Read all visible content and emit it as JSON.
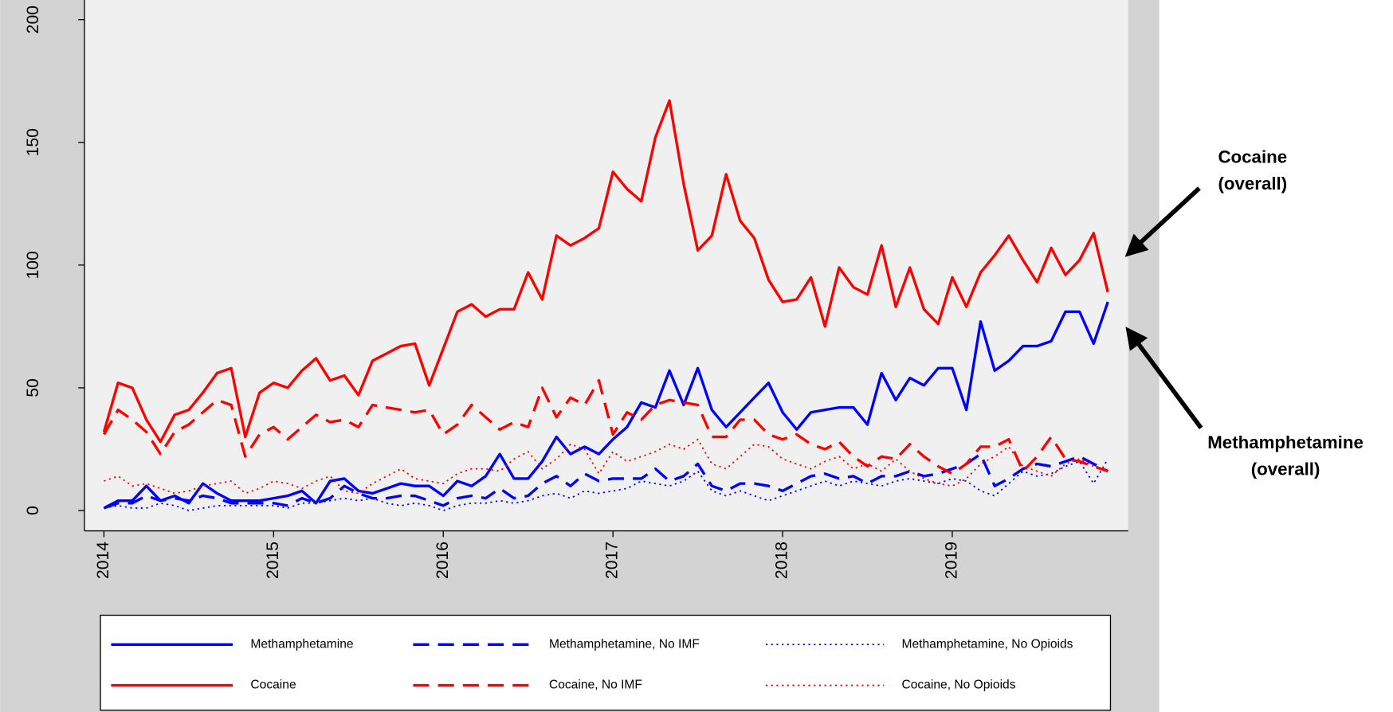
{
  "chart_data": {
    "type": "line",
    "x": [
      2014,
      2014.083,
      2014.167,
      2014.25,
      2014.333,
      2014.417,
      2014.5,
      2014.583,
      2014.667,
      2014.75,
      2014.833,
      2014.917,
      2015,
      2015.083,
      2015.167,
      2015.25,
      2015.333,
      2015.417,
      2015.5,
      2015.583,
      2015.667,
      2015.75,
      2015.833,
      2015.917,
      2016,
      2016.083,
      2016.167,
      2016.25,
      2016.333,
      2016.417,
      2016.5,
      2016.583,
      2016.667,
      2016.75,
      2016.833,
      2016.917,
      2017,
      2017.083,
      2017.167,
      2017.25,
      2017.333,
      2017.417,
      2017.5,
      2017.583,
      2017.667,
      2017.75,
      2017.833,
      2017.917,
      2018,
      2018.083,
      2018.167,
      2018.25,
      2018.333,
      2018.417,
      2018.5,
      2018.583,
      2018.667,
      2018.75,
      2018.833,
      2018.917,
      2019,
      2019.083,
      2019.167,
      2019.25,
      2019.333,
      2019.417,
      2019.5,
      2019.583,
      2019.667,
      2019.75,
      2019.833,
      2019.917
    ],
    "series": [
      {
        "name": "Methamphetamine",
        "color": "#0000ff",
        "dash": "solid",
        "values": [
          1,
          4,
          4,
          10,
          4,
          6,
          3,
          11,
          7,
          4,
          4,
          4,
          5,
          6,
          8,
          3,
          12,
          13,
          8,
          7,
          9,
          11,
          10,
          10,
          6,
          12,
          10,
          14,
          23,
          13,
          13,
          20,
          30,
          23,
          26,
          23,
          29,
          34,
          44,
          42,
          57,
          43,
          58,
          41,
          34,
          40,
          46,
          52,
          40,
          33,
          40,
          41,
          42,
          42,
          35,
          56,
          45,
          54,
          51,
          58,
          58,
          41,
          77,
          57,
          61,
          67,
          67,
          69,
          81,
          81,
          68,
          85
        ]
      },
      {
        "name": "Methamphetamine, No IMF",
        "color": "#0000ff",
        "dash": "dashed",
        "values": [
          1,
          3,
          3,
          6,
          4,
          5,
          4,
          6,
          5,
          3,
          3,
          3,
          3,
          2,
          5,
          3,
          5,
          10,
          7,
          5,
          5,
          6,
          6,
          4,
          2,
          5,
          6,
          5,
          9,
          5,
          6,
          11,
          14,
          10,
          15,
          12,
          13,
          13,
          13,
          17,
          12,
          14,
          19,
          10,
          8,
          11,
          11,
          10,
          8,
          11,
          14,
          15,
          13,
          14,
          11,
          14,
          14,
          16,
          14,
          15,
          17,
          19,
          23,
          10,
          13,
          17,
          19,
          18,
          20,
          22,
          19,
          16
        ]
      },
      {
        "name": "Methamphetamine, No Opioids",
        "color": "#0000ff",
        "dash": "dotted",
        "values": [
          1,
          2,
          1,
          1,
          3,
          2,
          0,
          1,
          2,
          2,
          2,
          2,
          2,
          1,
          3,
          3,
          4,
          5,
          4,
          5,
          3,
          2,
          3,
          2,
          0,
          2,
          3,
          3,
          4,
          3,
          4,
          6,
          7,
          5,
          8,
          7,
          8,
          9,
          12,
          11,
          10,
          12,
          16,
          8,
          6,
          8,
          6,
          4,
          6,
          8,
          10,
          12,
          10,
          12,
          11,
          10,
          12,
          13,
          12,
          11,
          13,
          12,
          8,
          6,
          11,
          16,
          14,
          15,
          18,
          20,
          11,
          21
        ]
      },
      {
        "name": "Cocaine",
        "color": "#ff0000",
        "dash": "solid",
        "values": [
          32,
          52,
          50,
          37,
          28,
          39,
          41,
          48,
          56,
          58,
          30,
          48,
          52,
          50,
          57,
          62,
          53,
          55,
          47,
          61,
          64,
          67,
          68,
          51,
          66,
          81,
          84,
          79,
          82,
          82,
          97,
          86,
          112,
          108,
          111,
          115,
          138,
          131,
          126,
          152,
          167,
          133,
          106,
          112,
          137,
          118,
          111,
          94,
          85,
          86,
          95,
          75,
          99,
          91,
          88,
          108,
          83,
          99,
          82,
          76,
          95,
          83,
          97,
          104,
          112,
          102,
          93,
          107,
          96,
          102,
          113,
          89
        ]
      },
      {
        "name": "Cocaine, No IMF",
        "color": "#ff0000",
        "dash": "dashed",
        "values": [
          31,
          41,
          37,
          32,
          23,
          32,
          35,
          40,
          45,
          43,
          22,
          31,
          34,
          29,
          34,
          39,
          36,
          37,
          34,
          43,
          42,
          41,
          40,
          41,
          31,
          35,
          43,
          38,
          33,
          36,
          34,
          50,
          38,
          46,
          43,
          53,
          31,
          40,
          37,
          43,
          45,
          44,
          43,
          30,
          30,
          37,
          37,
          31,
          29,
          31,
          27,
          25,
          28,
          22,
          18,
          22,
          21,
          27,
          22,
          18,
          15,
          19,
          26,
          26,
          29,
          16,
          22,
          30,
          21,
          20,
          18,
          16
        ]
      },
      {
        "name": "Cocaine, No Opioids",
        "color": "#ff0000",
        "dash": "dotted",
        "values": [
          12,
          14,
          10,
          11,
          9,
          7,
          8,
          10,
          11,
          12,
          7,
          9,
          12,
          11,
          9,
          12,
          14,
          8,
          7,
          11,
          14,
          17,
          13,
          12,
          11,
          15,
          17,
          17,
          16,
          21,
          24,
          17,
          21,
          27,
          25,
          15,
          24,
          20,
          22,
          24,
          27,
          25,
          29,
          19,
          17,
          22,
          27,
          26,
          21,
          19,
          17,
          20,
          22,
          17,
          19,
          16,
          21,
          16,
          13,
          11,
          10,
          13,
          19,
          22,
          26,
          18,
          16,
          14,
          19,
          21,
          18,
          17
        ]
      }
    ],
    "xlim": [
      2013.885,
      2020.037
    ],
    "xticks": [
      2014,
      2015,
      2016,
      2017,
      2018,
      2019
    ],
    "ylim": [
      -8.3,
      208
    ],
    "yticks": [
      0,
      50,
      100,
      150,
      200
    ],
    "annotations": [
      {
        "lines": [
          "Cocaine",
          "(overall)"
        ]
      },
      {
        "lines": [
          "Methamphetamine",
          "(overall)"
        ]
      }
    ]
  }
}
